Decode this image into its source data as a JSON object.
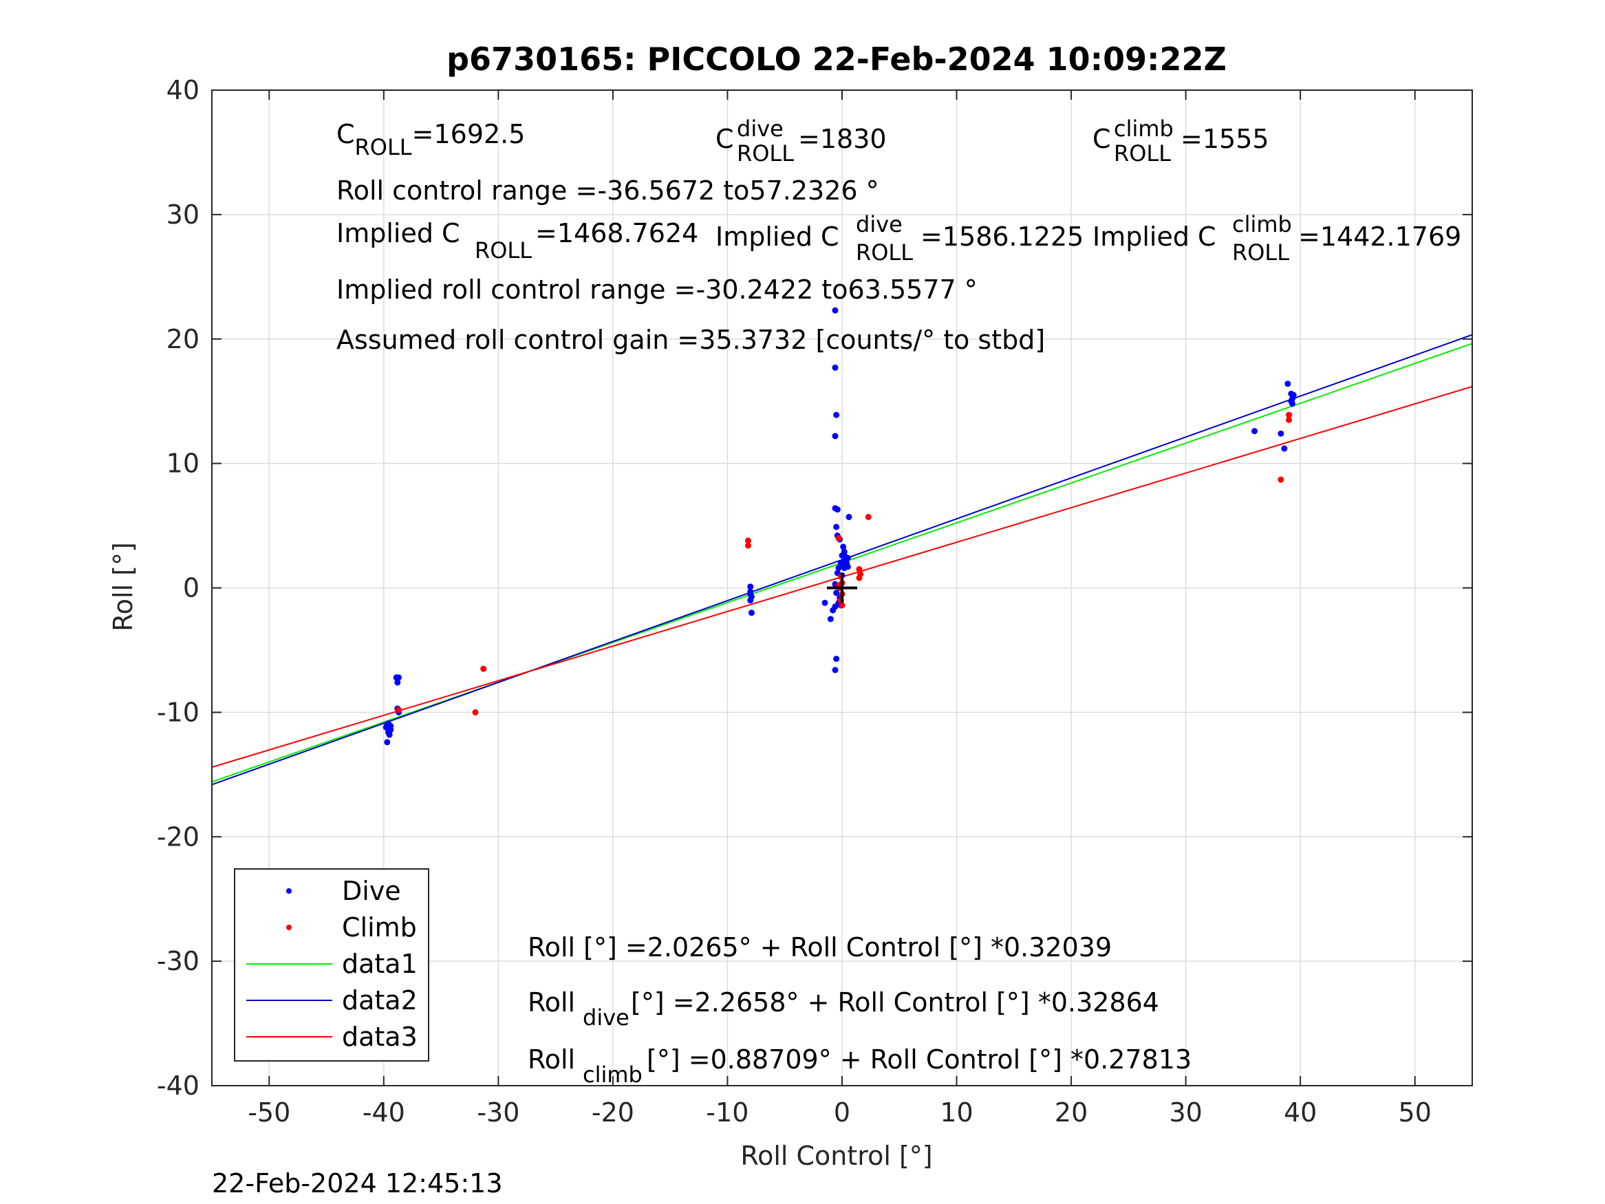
{
  "chart_data": {
    "type": "scatter",
    "title": "p6730165: PICCOLO 22-Feb-2024 10:09:22Z",
    "xlabel": "Roll Control [°]",
    "ylabel": "Roll [°]",
    "xlim": [
      -55,
      55
    ],
    "ylim": [
      -40,
      40
    ],
    "xticks": [
      -50,
      -40,
      -30,
      -20,
      -10,
      0,
      10,
      20,
      30,
      40,
      50
    ],
    "yticks": [
      -40,
      -30,
      -20,
      -10,
      0,
      10,
      20,
      30,
      40
    ],
    "grid": true,
    "legend_position": "bottom-left",
    "timestamp": "22-Feb-2024 12:45:13",
    "annotations": {
      "c_roll": {
        "base": "C",
        "sub": "ROLL",
        "value": "=1692.5"
      },
      "c_roll_dive": {
        "base": "C",
        "sup": "dive",
        "sub": "ROLL",
        "value": " =1830"
      },
      "c_roll_climb": {
        "base": "C",
        "sup": "climb",
        "sub": "ROLL",
        "value": " =1555"
      },
      "roll_control_range": "Roll control range =-36.5672 to57.2326 °",
      "implied_c_roll": {
        "prefix": "Implied C",
        "sub": "ROLL",
        "value": " =1468.7624"
      },
      "implied_c_roll_dive": {
        "prefix": "Implied C",
        "sup": "dive",
        "sub": "ROLL",
        "value": " =1586.1225"
      },
      "implied_c_roll_climb": {
        "prefix": "Implied C",
        "sup": "climb",
        "sub": "ROLL",
        "value": " =1442.1769"
      },
      "implied_roll_control_range": "Implied roll control range =-30.2422 to63.5577 °",
      "assumed_gain": "Assumed roll control gain =35.3732 [counts/° to stbd]",
      "fit_all": {
        "prefix": "Roll [°] =2.0265° + Roll Control [°] *0.32039"
      },
      "fit_dive": {
        "prefix": "Roll",
        "sub": "dive",
        "rest": " [°] =2.2658° + Roll Control [°] *0.32864"
      },
      "fit_climb": {
        "prefix": "Roll",
        "sub": "climb",
        "rest": " [°] =0.88709° + Roll Control [°] *0.27813"
      }
    },
    "series": [
      {
        "name": "Dive",
        "kind": "points",
        "color": "#0000ff",
        "points": [
          [
            -39.7,
            -11.0
          ],
          [
            -39.6,
            -11.3
          ],
          [
            -39.5,
            -11.5
          ],
          [
            -39.8,
            -11.2
          ],
          [
            -39.6,
            -10.9
          ],
          [
            -39.4,
            -11.4
          ],
          [
            -39.7,
            -12.4
          ],
          [
            -39.5,
            -11.8
          ],
          [
            -39.6,
            -11.6
          ],
          [
            -39.4,
            -11.1
          ],
          [
            -38.9,
            -7.2
          ],
          [
            -38.7,
            -7.2
          ],
          [
            -38.8,
            -7.6
          ],
          [
            -38.8,
            -9.7
          ],
          [
            -38.7,
            -10.0
          ],
          [
            -8.0,
            0.1
          ],
          [
            -8.0,
            -0.3
          ],
          [
            -7.9,
            -0.7
          ],
          [
            -8.0,
            -1.0
          ],
          [
            -7.9,
            -2.0
          ],
          [
            -8.0,
            -0.5
          ],
          [
            -0.6,
            22.3
          ],
          [
            -0.6,
            17.7
          ],
          [
            -0.5,
            13.9
          ],
          [
            -0.6,
            12.2
          ],
          [
            -0.6,
            6.4
          ],
          [
            -0.4,
            6.3
          ],
          [
            -0.5,
            4.9
          ],
          [
            -0.4,
            4.2
          ],
          [
            0.6,
            5.7
          ],
          [
            -0.2,
            3.9
          ],
          [
            0.1,
            3.3
          ],
          [
            0.2,
            2.9
          ],
          [
            0.0,
            2.6
          ],
          [
            0.3,
            2.5
          ],
          [
            0.5,
            2.4
          ],
          [
            0.2,
            2.2
          ],
          [
            0.4,
            2.0
          ],
          [
            0.1,
            1.9
          ],
          [
            0.3,
            1.8
          ],
          [
            0.5,
            1.7
          ],
          [
            0.2,
            1.6
          ],
          [
            -0.1,
            2.0
          ],
          [
            -0.3,
            1.6
          ],
          [
            -0.4,
            1.2
          ],
          [
            0.0,
            1.0
          ],
          [
            -0.6,
            0.3
          ],
          [
            -0.5,
            -0.4
          ],
          [
            -0.2,
            -0.8
          ],
          [
            -0.3,
            -1.2
          ],
          [
            -1.5,
            -1.2
          ],
          [
            -0.8,
            -1.8
          ],
          [
            -0.6,
            -1.5
          ],
          [
            -1.0,
            -2.5
          ],
          [
            -0.1,
            -1.4
          ],
          [
            -0.5,
            -5.7
          ],
          [
            -0.6,
            -6.6
          ],
          [
            36.0,
            12.6
          ],
          [
            38.3,
            12.4
          ],
          [
            38.6,
            11.2
          ],
          [
            38.9,
            16.4
          ],
          [
            39.2,
            15.6
          ],
          [
            39.3,
            15.2
          ],
          [
            39.2,
            15.0
          ],
          [
            39.4,
            15.5
          ],
          [
            39.3,
            14.8
          ]
        ]
      },
      {
        "name": "Climb",
        "kind": "points",
        "color": "#ff0000",
        "points": [
          [
            -31.3,
            -6.5
          ],
          [
            -32.0,
            -10.0
          ],
          [
            -38.7,
            -9.8
          ],
          [
            -8.2,
            3.8
          ],
          [
            -8.2,
            3.4
          ],
          [
            -0.3,
            4.0
          ],
          [
            2.3,
            5.7
          ],
          [
            1.5,
            1.5
          ],
          [
            1.6,
            1.1
          ],
          [
            1.5,
            0.8
          ],
          [
            -0.1,
            0.9
          ],
          [
            0.0,
            0.4
          ],
          [
            -0.2,
            0.0
          ],
          [
            0.0,
            -0.5
          ],
          [
            -0.1,
            -1.0
          ],
          [
            0.0,
            -1.4
          ],
          [
            -0.3,
            0.2
          ],
          [
            38.3,
            8.7
          ],
          [
            39.0,
            13.9
          ],
          [
            39.0,
            13.5
          ]
        ]
      },
      {
        "name": "data1",
        "kind": "line",
        "color": "#00ee00",
        "x": [
          -55,
          55
        ],
        "y": [
          -15.59,
          19.64
        ]
      },
      {
        "name": "data2",
        "kind": "line",
        "color": "#0000c8",
        "x": [
          -55,
          55
        ],
        "y": [
          -15.81,
          20.34
        ]
      },
      {
        "name": "data3",
        "kind": "line",
        "color": "#ff0000",
        "x": [
          -55,
          55
        ],
        "y": [
          -14.41,
          16.18
        ]
      }
    ],
    "marker": {
      "x": 0,
      "y": 0,
      "color": "#000000"
    }
  }
}
